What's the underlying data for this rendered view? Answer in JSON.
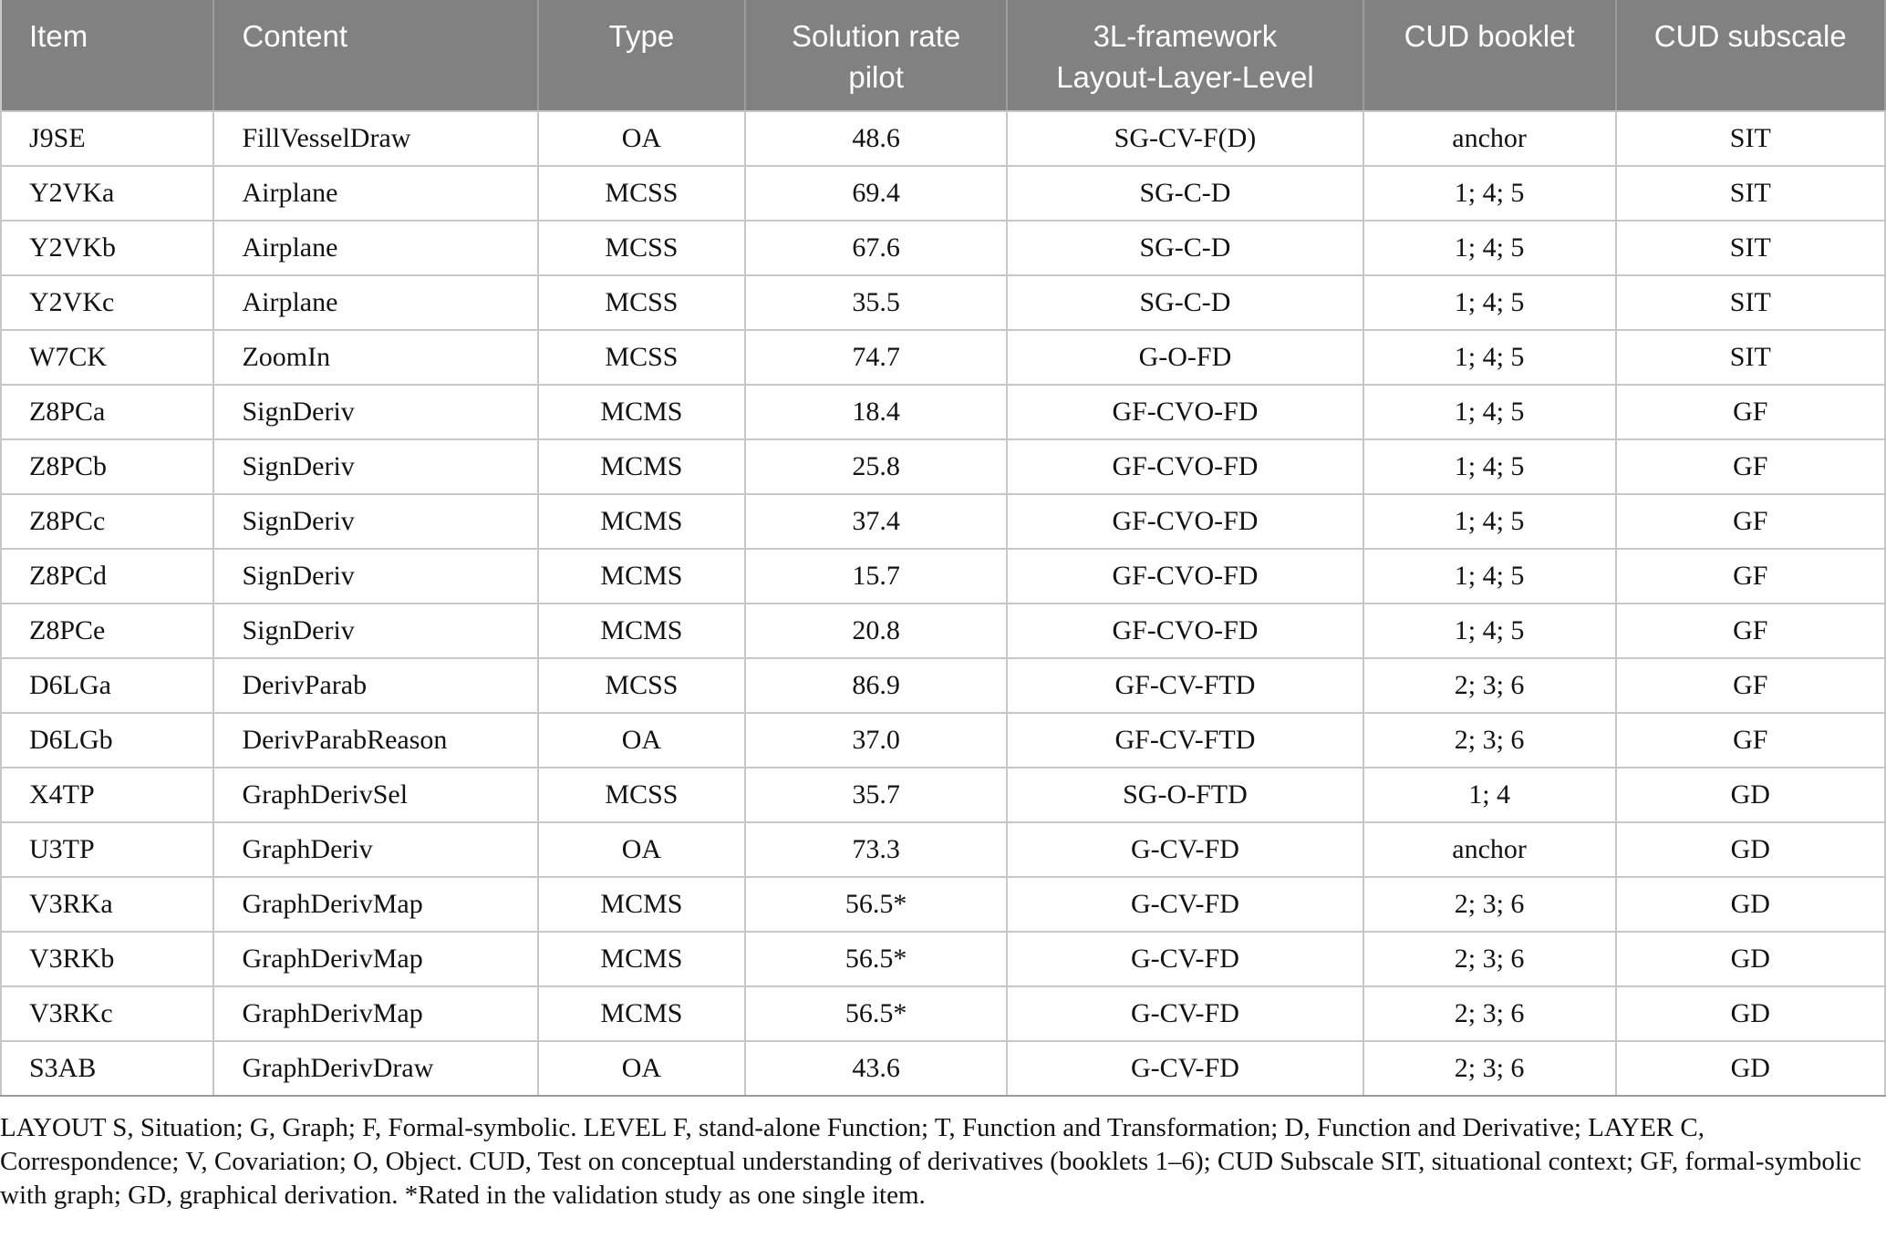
{
  "colors": {
    "header_bg": "#818181",
    "header_text": "#ffffff",
    "header_divider": "#9d9d9d",
    "grid_line": "#c7c7c7",
    "bottom_border": "#9a9a9a",
    "body_text": "#121212"
  },
  "table": {
    "columns": [
      {
        "key": "item",
        "label": "Item",
        "align": "left"
      },
      {
        "key": "content",
        "label": "Content",
        "align": "left"
      },
      {
        "key": "type",
        "label": "Type",
        "align": "center"
      },
      {
        "key": "solution_rate",
        "label": "Solution rate\npilot",
        "align": "center"
      },
      {
        "key": "framework",
        "label": "3L-framework\nLayout-Layer-Level",
        "align": "center"
      },
      {
        "key": "cud_booklet",
        "label": "CUD booklet",
        "align": "center"
      },
      {
        "key": "cud_subscale",
        "label": "CUD subscale",
        "align": "center"
      }
    ],
    "rows": [
      {
        "item": "J9SE",
        "content": "FillVesselDraw",
        "type": "OA",
        "solution_rate": "48.6",
        "framework": "SG-CV-F(D)",
        "cud_booklet": "anchor",
        "cud_subscale": "SIT"
      },
      {
        "item": "Y2VKa",
        "content": "Airplane",
        "type": "MCSS",
        "solution_rate": "69.4",
        "framework": "SG-C-D",
        "cud_booklet": "1; 4; 5",
        "cud_subscale": "SIT"
      },
      {
        "item": "Y2VKb",
        "content": "Airplane",
        "type": "MCSS",
        "solution_rate": "67.6",
        "framework": "SG-C-D",
        "cud_booklet": "1; 4; 5",
        "cud_subscale": "SIT"
      },
      {
        "item": "Y2VKc",
        "content": "Airplane",
        "type": "MCSS",
        "solution_rate": "35.5",
        "framework": "SG-C-D",
        "cud_booklet": "1; 4; 5",
        "cud_subscale": "SIT"
      },
      {
        "item": "W7CK",
        "content": "ZoomIn",
        "type": "MCSS",
        "solution_rate": "74.7",
        "framework": "G-O-FD",
        "cud_booklet": "1; 4; 5",
        "cud_subscale": "SIT"
      },
      {
        "item": "Z8PCa",
        "content": "SignDeriv",
        "type": "MCMS",
        "solution_rate": "18.4",
        "framework": "GF-CVO-FD",
        "cud_booklet": "1; 4; 5",
        "cud_subscale": "GF"
      },
      {
        "item": "Z8PCb",
        "content": "SignDeriv",
        "type": "MCMS",
        "solution_rate": "25.8",
        "framework": "GF-CVO-FD",
        "cud_booklet": "1; 4; 5",
        "cud_subscale": "GF"
      },
      {
        "item": "Z8PCc",
        "content": "SignDeriv",
        "type": "MCMS",
        "solution_rate": "37.4",
        "framework": "GF-CVO-FD",
        "cud_booklet": "1; 4; 5",
        "cud_subscale": "GF"
      },
      {
        "item": "Z8PCd",
        "content": "SignDeriv",
        "type": "MCMS",
        "solution_rate": "15.7",
        "framework": "GF-CVO-FD",
        "cud_booklet": "1; 4; 5",
        "cud_subscale": "GF"
      },
      {
        "item": "Z8PCe",
        "content": "SignDeriv",
        "type": "MCMS",
        "solution_rate": "20.8",
        "framework": "GF-CVO-FD",
        "cud_booklet": "1; 4; 5",
        "cud_subscale": "GF"
      },
      {
        "item": "D6LGa",
        "content": "DerivParab",
        "type": "MCSS",
        "solution_rate": "86.9",
        "framework": "GF-CV-FTD",
        "cud_booklet": "2; 3; 6",
        "cud_subscale": "GF"
      },
      {
        "item": "D6LGb",
        "content": "DerivParabReason",
        "type": "OA",
        "solution_rate": "37.0",
        "framework": "GF-CV-FTD",
        "cud_booklet": "2; 3; 6",
        "cud_subscale": "GF"
      },
      {
        "item": "X4TP",
        "content": "GraphDerivSel",
        "type": "MCSS",
        "solution_rate": "35.7",
        "framework": "SG-O-FTD",
        "cud_booklet": "1; 4",
        "cud_subscale": "GD"
      },
      {
        "item": "U3TP",
        "content": "GraphDeriv",
        "type": "OA",
        "solution_rate": "73.3",
        "framework": "G-CV-FD",
        "cud_booklet": "anchor",
        "cud_subscale": "GD"
      },
      {
        "item": "V3RKa",
        "content": "GraphDerivMap",
        "type": "MCMS",
        "solution_rate": "56.5*",
        "framework": "G-CV-FD",
        "cud_booklet": "2; 3; 6",
        "cud_subscale": "GD"
      },
      {
        "item": "V3RKb",
        "content": "GraphDerivMap",
        "type": "MCMS",
        "solution_rate": "56.5*",
        "framework": "G-CV-FD",
        "cud_booklet": "2; 3; 6",
        "cud_subscale": "GD"
      },
      {
        "item": "V3RKc",
        "content": "GraphDerivMap",
        "type": "MCMS",
        "solution_rate": "56.5*",
        "framework": "G-CV-FD",
        "cud_booklet": "2; 3; 6",
        "cud_subscale": "GD"
      },
      {
        "item": "S3AB",
        "content": "GraphDerivDraw",
        "type": "OA",
        "solution_rate": "43.6",
        "framework": "G-CV-FD",
        "cud_booklet": "2; 3; 6",
        "cud_subscale": "GD"
      }
    ]
  },
  "footnote": "LAYOUT S, Situation; G, Graph; F, Formal-symbolic. LEVEL F, stand-alone Function; T, Function and Transformation; D, Function and Derivative; LAYER C, Correspondence; V, Covariation; O, Object. CUD, Test on conceptual understanding of derivatives (booklets 1–6); CUD Subscale SIT, situational context; GF, formal-symbolic with graph; GD, graphical derivation. *Rated in the validation study as one single item."
}
